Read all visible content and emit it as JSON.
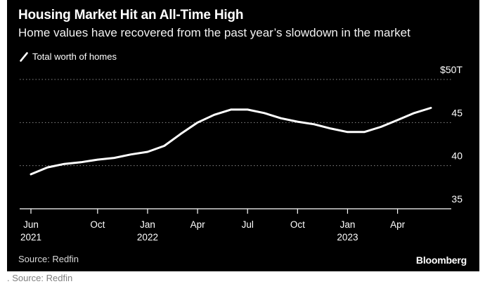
{
  "header": {
    "title": "Housing Market Hit an All-Time High",
    "subtitle": "Home values have recovered from the past year’s slowdown in the market"
  },
  "footer": {
    "source": "Source: Redfin",
    "brand": "Bloomberg"
  },
  "caption": ". Source: Redfin",
  "colors": {
    "background": "#000000",
    "line": "#ffffff",
    "gridline": "#8a8a8a"
  },
  "chart_data": {
    "type": "line",
    "title": "Housing Market Hit an All-Time High",
    "subtitle": "Home values have recovered from the past year’s slowdown in the market",
    "legend": [
      "Total worth of homes"
    ],
    "legend_position": "top-left",
    "y_unit_label": "$50T",
    "ylim": [
      35,
      50
    ],
    "yticks": [
      {
        "value": 50,
        "label": "$50T"
      },
      {
        "value": 45,
        "label": "45"
      },
      {
        "value": 40,
        "label": "40"
      },
      {
        "value": 35,
        "label": "35"
      }
    ],
    "grid": "horizontal dotted",
    "x_ticks": [
      {
        "date": "2021-06",
        "label": "Jun",
        "year": "2021"
      },
      {
        "date": "2021-10",
        "label": "Oct",
        "year": ""
      },
      {
        "date": "2022-01",
        "label": "Jan",
        "year": "2022"
      },
      {
        "date": "2022-04",
        "label": "Apr",
        "year": ""
      },
      {
        "date": "2022-07",
        "label": "Jul",
        "year": ""
      },
      {
        "date": "2022-10",
        "label": "Oct",
        "year": ""
      },
      {
        "date": "2023-01",
        "label": "Jan",
        "year": "2023"
      },
      {
        "date": "2023-04",
        "label": "Apr",
        "year": ""
      }
    ],
    "series": [
      {
        "name": "Total worth of homes",
        "points": [
          {
            "x": "2021-06",
            "y": 39.0
          },
          {
            "x": "2021-07",
            "y": 39.8
          },
          {
            "x": "2021-08",
            "y": 40.2
          },
          {
            "x": "2021-09",
            "y": 40.4
          },
          {
            "x": "2021-10",
            "y": 40.7
          },
          {
            "x": "2021-11",
            "y": 40.9
          },
          {
            "x": "2021-12",
            "y": 41.3
          },
          {
            "x": "2022-01",
            "y": 41.6
          },
          {
            "x": "2022-02",
            "y": 42.3
          },
          {
            "x": "2022-03",
            "y": 43.7
          },
          {
            "x": "2022-04",
            "y": 45.0
          },
          {
            "x": "2022-05",
            "y": 45.9
          },
          {
            "x": "2022-06",
            "y": 46.5
          },
          {
            "x": "2022-07",
            "y": 46.5
          },
          {
            "x": "2022-08",
            "y": 46.1
          },
          {
            "x": "2022-09",
            "y": 45.5
          },
          {
            "x": "2022-10",
            "y": 45.1
          },
          {
            "x": "2022-11",
            "y": 44.8
          },
          {
            "x": "2022-12",
            "y": 44.3
          },
          {
            "x": "2023-01",
            "y": 43.9
          },
          {
            "x": "2023-02",
            "y": 43.9
          },
          {
            "x": "2023-03",
            "y": 44.5
          },
          {
            "x": "2023-04",
            "y": 45.3
          },
          {
            "x": "2023-05",
            "y": 46.1
          },
          {
            "x": "2023-06",
            "y": 46.7
          }
        ]
      }
    ]
  }
}
